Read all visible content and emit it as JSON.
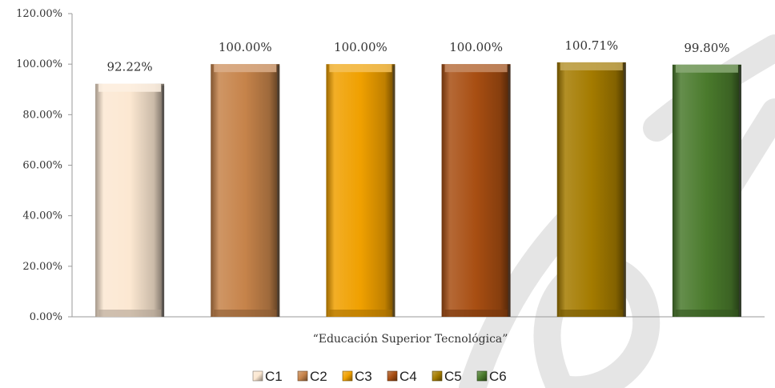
{
  "chart_data": {
    "type": "bar",
    "categories": [
      "C1",
      "C2",
      "C3",
      "C4",
      "C5",
      "C6"
    ],
    "values": [
      92.22,
      100.0,
      100.0,
      100.0,
      100.71,
      99.8
    ],
    "data_labels": [
      "92.22%",
      "100.00%",
      "100.00%",
      "100.00%",
      "100.71%",
      "99.80%"
    ],
    "colors": [
      "#fce8d2",
      "#c6834a",
      "#f0a000",
      "#a84e12",
      "#a47b00",
      "#4a7a2c"
    ],
    "ylim": [
      0,
      120
    ],
    "yticks": [
      0,
      20,
      40,
      60,
      80,
      100,
      120
    ],
    "ytick_labels": [
      "0.00%",
      "20.00%",
      "40.00%",
      "60.00%",
      "80.00%",
      "100.00%",
      "120.00%"
    ],
    "xlabel": "“Educación Superior Tecnológica”",
    "grid": false,
    "legend": {
      "placement": "bottom",
      "entries": [
        "C1",
        "C2",
        "C3",
        "C4",
        "C5",
        "C6"
      ]
    }
  }
}
